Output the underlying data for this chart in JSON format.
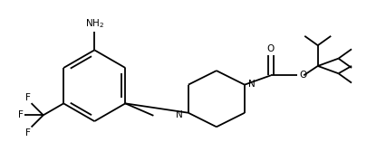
{
  "background": "#ffffff",
  "line_color": "#000000",
  "line_width": 1.3,
  "font_size": 7.5,
  "figsize": [
    4.26,
    1.78
  ],
  "dpi": 100,
  "xlim": [
    0.0,
    4.26
  ],
  "ylim": [
    0.0,
    1.78
  ]
}
